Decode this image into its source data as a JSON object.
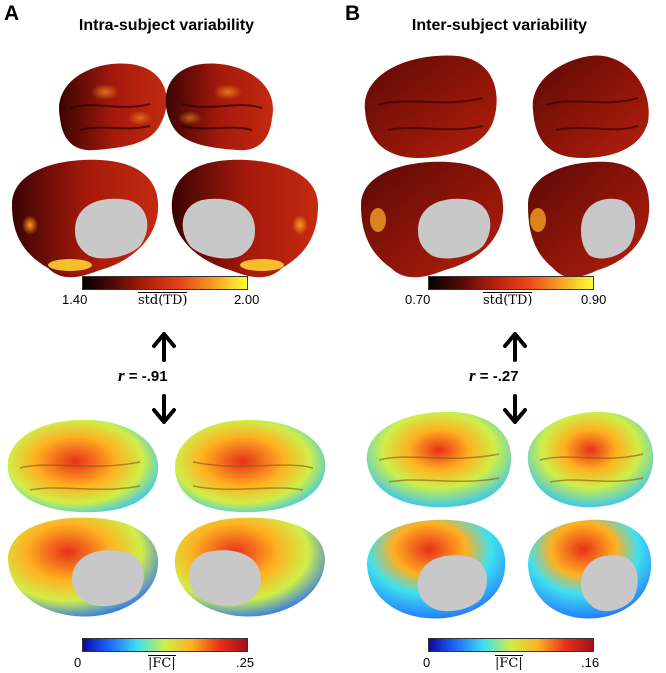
{
  "panels": [
    {
      "letter": "A",
      "title": "Intra-subject variability",
      "td_colorbar": {
        "min": "1.40",
        "max": "2.00",
        "measure": "std(TD)"
      },
      "correlation": {
        "symbol": "r",
        "text": " = -.91"
      },
      "fc_colorbar": {
        "min": "0",
        "max": ".25",
        "measure": "|FC|"
      }
    },
    {
      "letter": "B",
      "title": "Inter-subject variability",
      "td_colorbar": {
        "min": "0.70",
        "max": "0.90",
        "measure": "std(TD)"
      },
      "correlation": {
        "symbol": "r",
        "text": " = -.27"
      },
      "fc_colorbar": {
        "min": "0",
        "max": ".16",
        "measure": "|FC|"
      }
    }
  ],
  "colors": {
    "hot_map": [
      "#000000",
      "#5a0a05",
      "#b5200c",
      "#e8461a",
      "#f5a021",
      "#ffff33"
    ],
    "jet_map": [
      "#0a0a9e",
      "#1f6aff",
      "#3fe0f0",
      "#cfee49",
      "#ffb020",
      "#e8301a",
      "#a0101a"
    ],
    "medial_wall": "#c8c8c8"
  }
}
